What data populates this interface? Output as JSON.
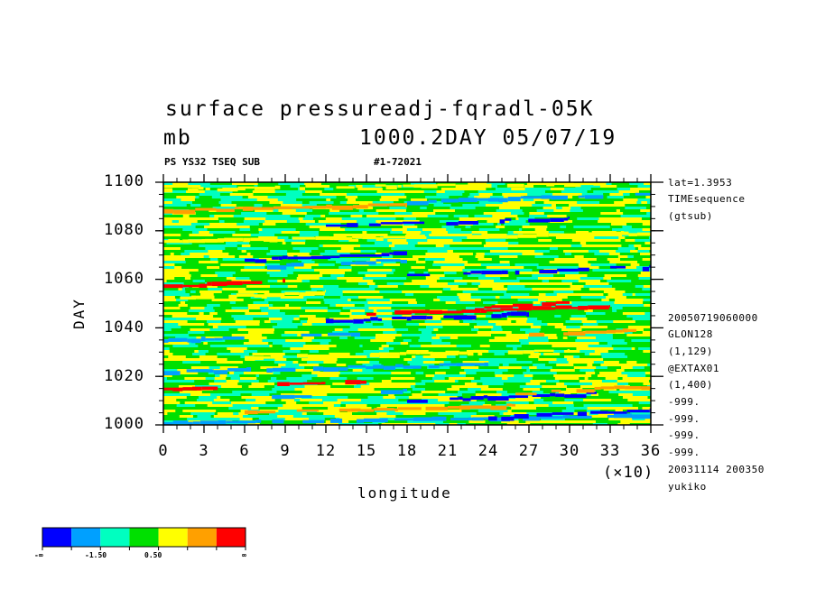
{
  "header": {
    "title_line1": "surface pressureadj-fqradl-05K",
    "unit": "mb",
    "title_line2_right": "1000.2DAY 05/07/19",
    "subtitle_left": "PS YS32 TSEQ SUB",
    "subtitle_right": "#1-72021"
  },
  "side_info": {
    "top": [
      "lat=1.3953",
      "TIMEsequence",
      "(gtsub)"
    ],
    "bottom": [
      "20050719060000",
      "GLON128",
      "(1,129)",
      "@EXTAX01",
      "(1,400)",
      "-999.",
      "-999.",
      "-999.",
      "-999.",
      "20031114 200350",
      "yukiko"
    ]
  },
  "axes": {
    "xlabel": "longitude",
    "ylabel": "DAY",
    "x_multiplier": "(×10)"
  },
  "colorbar": {
    "labels": [
      "-∞",
      "-1.50",
      "0.50",
      "∞"
    ]
  },
  "chart_data": {
    "type": "heatmap",
    "title": "surface pressureadj-fqradl-05K",
    "xlabel": "longitude",
    "ylabel": "DAY",
    "x_ticks": [
      0,
      3,
      6,
      9,
      12,
      15,
      18,
      21,
      24,
      27,
      30,
      33,
      36
    ],
    "x_tick_multiplier": 10,
    "xlim": [
      0,
      360
    ],
    "y_ticks": [
      1000,
      1020,
      1040,
      1060,
      1080,
      1100
    ],
    "ylim": [
      1000,
      1100
    ],
    "color_levels": [
      "#0000ff",
      "#00a0ff",
      "#00ffc0",
      "#00e000",
      "#ffff00",
      "#ffa000",
      "#ff0000"
    ],
    "bands": [
      {
        "day": 1001,
        "lon0": 0,
        "lon1": 360,
        "level": 1
      },
      {
        "day": 1003,
        "lon0": 240,
        "lon1": 360,
        "level": 0
      },
      {
        "day": 1005,
        "lon0": 60,
        "lon1": 260,
        "level": 5
      },
      {
        "day": 1010,
        "lon0": 180,
        "lon1": 320,
        "level": 0
      },
      {
        "day": 1011,
        "lon0": 60,
        "lon1": 180,
        "level": 1
      },
      {
        "day": 1015,
        "lon0": 0,
        "lon1": 150,
        "level": 6
      },
      {
        "day": 1013,
        "lon0": 260,
        "lon1": 360,
        "level": 5
      },
      {
        "day": 1022,
        "lon0": 0,
        "lon1": 240,
        "level": 1
      },
      {
        "day": 1028,
        "lon0": 60,
        "lon1": 300,
        "level": 4
      },
      {
        "day": 1035,
        "lon0": 0,
        "lon1": 150,
        "level": 1
      },
      {
        "day": 1037,
        "lon0": 270,
        "lon1": 360,
        "level": 5
      },
      {
        "day": 1043,
        "lon0": 120,
        "lon1": 270,
        "level": 0
      },
      {
        "day": 1046,
        "lon0": 150,
        "lon1": 330,
        "level": 6
      },
      {
        "day": 1048,
        "lon0": 230,
        "lon1": 300,
        "level": 6
      },
      {
        "day": 1052,
        "lon0": 0,
        "lon1": 120,
        "level": 4
      },
      {
        "day": 1057,
        "lon0": 0,
        "lon1": 90,
        "level": 6
      },
      {
        "day": 1062,
        "lon0": 180,
        "lon1": 360,
        "level": 0
      },
      {
        "day": 1065,
        "lon0": 60,
        "lon1": 180,
        "level": 1
      },
      {
        "day": 1068,
        "lon0": 60,
        "lon1": 180,
        "level": 0
      },
      {
        "day": 1076,
        "lon0": 0,
        "lon1": 360,
        "level": 4
      },
      {
        "day": 1082,
        "lon0": 120,
        "lon1": 300,
        "level": 0
      },
      {
        "day": 1088,
        "lon0": 0,
        "lon1": 180,
        "level": 5
      },
      {
        "day": 1092,
        "lon0": 180,
        "lon1": 360,
        "level": 1
      },
      {
        "day": 1097,
        "lon0": 0,
        "lon1": 360,
        "level": 4
      }
    ]
  }
}
